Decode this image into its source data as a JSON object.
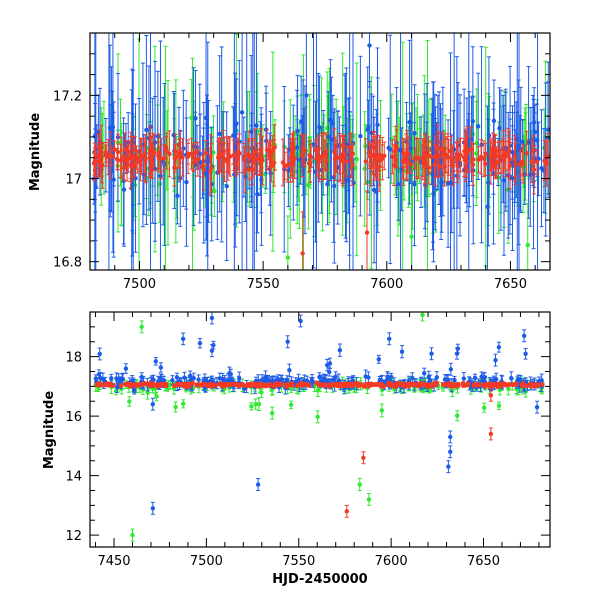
{
  "colors": {
    "green": "#33e833",
    "blue": "#1e5ce8",
    "red": "#f23a26",
    "axis": "#000000"
  },
  "chart_data": [
    {
      "type": "scatter",
      "title": "",
      "xlabel": "",
      "ylabel": "Magnitude",
      "xlim": [
        7480,
        7666
      ],
      "ylim": [
        17.35,
        16.78
      ],
      "y_inverted": true,
      "xticks": [
        7500,
        7550,
        7600,
        7650
      ],
      "yticks": [
        16.8,
        17,
        17.2
      ],
      "error_bars": true,
      "series": [
        {
          "color": "green",
          "baseline": 17.05,
          "error_range": [
            0.04,
            0.14
          ]
        },
        {
          "color": "blue",
          "baseline": 17.06,
          "error_range": [
            0.05,
            0.2
          ]
        },
        {
          "color": "red",
          "baseline": 17.05,
          "error_range": [
            0.02,
            0.06
          ]
        }
      ],
      "notable_points": [
        {
          "series": "green",
          "x": 7560,
          "y": 16.81
        },
        {
          "series": "green",
          "x": 7657,
          "y": 16.84
        },
        {
          "series": "green",
          "x": 7610,
          "y": 16.86
        },
        {
          "series": "red",
          "x": 7566,
          "y": 16.82
        },
        {
          "series": "red",
          "x": 7592,
          "y": 16.87
        },
        {
          "series": "blue",
          "x": 7593,
          "y": 17.32
        }
      ]
    },
    {
      "type": "scatter",
      "title": "",
      "xlabel": "HJD-2450000",
      "ylabel": "Magnitude",
      "xlim": [
        7437,
        7686
      ],
      "ylim": [
        19.5,
        11.6
      ],
      "y_inverted": true,
      "xticks": [
        7450,
        7500,
        7550,
        7600,
        7650
      ],
      "yticks": [
        12,
        14,
        16,
        18
      ],
      "error_bars": true,
      "series": [
        {
          "color": "green",
          "baseline": 17.0
        },
        {
          "color": "blue",
          "baseline": 17.15
        },
        {
          "color": "red",
          "baseline": 17.05
        }
      ],
      "notable_points": [
        {
          "series": "green",
          "x": 7460,
          "y": 12.0
        },
        {
          "series": "blue",
          "x": 7471,
          "y": 12.9
        },
        {
          "series": "blue",
          "x": 7528,
          "y": 13.7
        },
        {
          "series": "red",
          "x": 7576,
          "y": 12.8
        },
        {
          "series": "green",
          "x": 7588,
          "y": 13.2
        },
        {
          "series": "green",
          "x": 7583,
          "y": 13.7
        },
        {
          "series": "red",
          "x": 7585,
          "y": 14.6
        },
        {
          "series": "blue",
          "x": 7631,
          "y": 14.3
        },
        {
          "series": "blue",
          "x": 7632,
          "y": 14.8
        },
        {
          "series": "blue",
          "x": 7632,
          "y": 15.3
        },
        {
          "series": "red",
          "x": 7654,
          "y": 15.4
        },
        {
          "series": "red",
          "x": 7654,
          "y": 16.7
        },
        {
          "series": "green",
          "x": 7465,
          "y": 19.0
        },
        {
          "series": "green",
          "x": 7617,
          "y": 19.4
        },
        {
          "series": "blue",
          "x": 7503,
          "y": 18.2
        },
        {
          "series": "blue",
          "x": 7503,
          "y": 19.3
        },
        {
          "series": "blue",
          "x": 7551,
          "y": 19.2
        },
        {
          "series": "blue",
          "x": 7544,
          "y": 18.5
        },
        {
          "series": "blue",
          "x": 7672,
          "y": 18.7
        },
        {
          "series": "blue",
          "x": 7599,
          "y": 18.6
        },
        {
          "series": "blue",
          "x": 7471,
          "y": 16.4
        },
        {
          "series": "blue",
          "x": 7679,
          "y": 16.3
        }
      ]
    }
  ]
}
